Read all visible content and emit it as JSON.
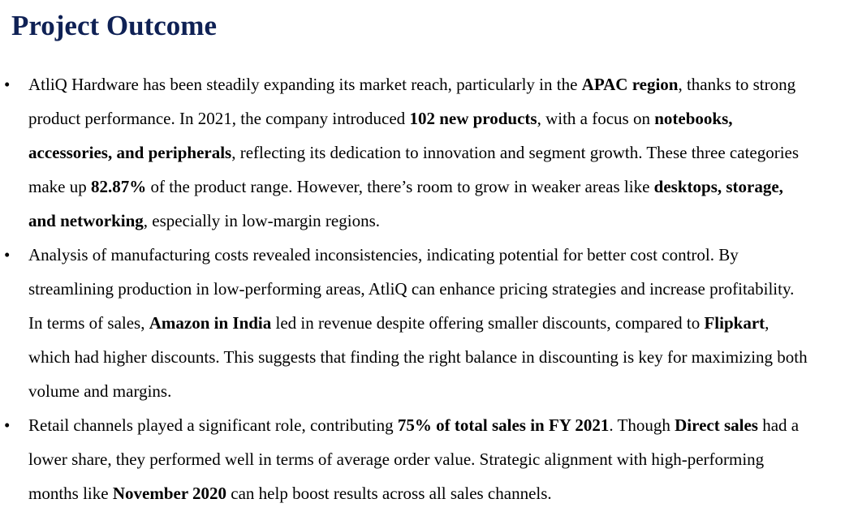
{
  "title": "Project Outcome",
  "bullet_symbol": "•",
  "bullets": [
    {
      "segments": [
        {
          "text": "AtliQ Hardware has been steadily expanding its market reach, particularly in the ",
          "bold": false
        },
        {
          "text": "APAC region",
          "bold": true
        },
        {
          "text": ", thanks to strong product performance. In 2021, the company introduced ",
          "bold": false
        },
        {
          "text": "102 new products",
          "bold": true
        },
        {
          "text": ", with a focus on ",
          "bold": false
        },
        {
          "text": "notebooks, accessories, and peripherals",
          "bold": true
        },
        {
          "text": ", reflecting its dedication to innovation and segment growth. These three categories make up ",
          "bold": false
        },
        {
          "text": "82.87%",
          "bold": true
        },
        {
          "text": " of the product range. However, there’s room to grow in weaker areas like ",
          "bold": false
        },
        {
          "text": "desktops, storage, and networking",
          "bold": true
        },
        {
          "text": ", especially in low-margin regions.",
          "bold": false
        }
      ]
    },
    {
      "segments": [
        {
          "text": "Analysis of manufacturing costs revealed inconsistencies, indicating potential for better cost control. By streamlining production in low-performing areas, AtliQ can enhance pricing strategies and increase profitability. In terms of sales, ",
          "bold": false
        },
        {
          "text": "Amazon in India",
          "bold": true
        },
        {
          "text": " led in revenue despite offering smaller discounts, compared to ",
          "bold": false
        },
        {
          "text": "Flipkart",
          "bold": true
        },
        {
          "text": ", which had higher discounts. This suggests that finding the right balance in discounting is key for maximizing both volume and margins.",
          "bold": false
        }
      ]
    },
    {
      "segments": [
        {
          "text": "Retail channels played a significant role, contributing ",
          "bold": false
        },
        {
          "text": "75% of total sales in FY 2021",
          "bold": true
        },
        {
          "text": ". Though ",
          "bold": false
        },
        {
          "text": "Direct sales",
          "bold": true
        },
        {
          "text": " had a lower share, they performed well in terms of average order value. Strategic alignment with high-performing months like ",
          "bold": false
        },
        {
          "text": "November 2020",
          "bold": true
        },
        {
          "text": " can help boost results across all sales channels.",
          "bold": false
        }
      ]
    }
  ]
}
